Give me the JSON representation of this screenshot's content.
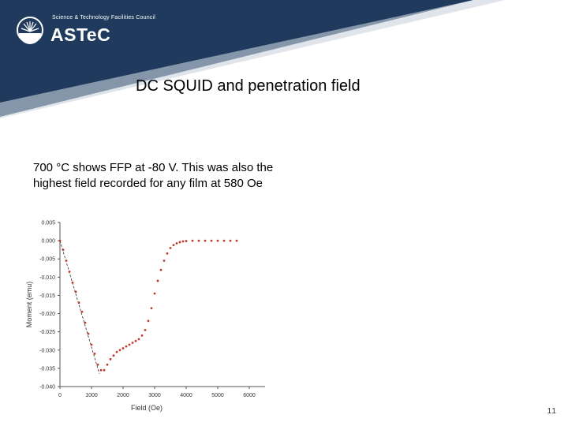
{
  "header": {
    "org_line": "Science & Technology Facilities Council",
    "logo_text": "ASTeC",
    "logo_icon": "stfc-sunburst-logo",
    "band_color": "#1f3a5c"
  },
  "slide": {
    "title": "DC SQUID and penetration field",
    "body": "700 °C shows FFP at -80 V. This was also the highest field recorded for any film at 580 Oe",
    "page_number": "11"
  },
  "chart_data": {
    "type": "scatter",
    "xlabel": "Field (Oe)",
    "ylabel": "Moment (emu)",
    "xlim": [
      0,
      6500
    ],
    "ylim": [
      -0.04,
      0.005
    ],
    "xticks": [
      0,
      1000,
      2000,
      3000,
      4000,
      5000,
      6000
    ],
    "xtick_labels": [
      "0",
      "1000",
      "2000",
      "3000",
      "4000",
      "5000",
      "6000"
    ],
    "yticks": [
      0.005,
      0.0,
      -0.005,
      -0.01,
      -0.015,
      -0.02,
      -0.025,
      -0.03,
      -0.035,
      -0.04
    ],
    "ytick_labels": [
      "0.005",
      "0.000",
      "-0.005",
      "-0.010",
      "-0.015",
      "-0.020",
      "-0.025",
      "-0.030",
      "-0.035",
      "-0.040"
    ],
    "series": [
      {
        "color": "#c0392b",
        "marker": "point",
        "x": [
          0,
          100,
          200,
          300,
          400,
          500,
          600,
          700,
          800,
          900,
          1000,
          1100,
          1200,
          1300,
          1400,
          1500,
          1600,
          1700,
          1800,
          1900,
          2000,
          2100,
          2200,
          2300,
          2400,
          2500,
          2600,
          2700,
          2800,
          2900,
          3000,
          3100,
          3200,
          3300,
          3400,
          3500,
          3600,
          3700,
          3800,
          3900,
          4000,
          4200,
          4400,
          4600,
          4800,
          5000,
          5200,
          5400,
          5600
        ],
        "y": [
          0.0,
          -0.0025,
          -0.0055,
          -0.0085,
          -0.0115,
          -0.014,
          -0.017,
          -0.0195,
          -0.0225,
          -0.0255,
          -0.0285,
          -0.031,
          -0.034,
          -0.0355,
          -0.0355,
          -0.034,
          -0.0325,
          -0.0315,
          -0.0305,
          -0.03,
          -0.0295,
          -0.029,
          -0.0285,
          -0.028,
          -0.0275,
          -0.027,
          -0.026,
          -0.0245,
          -0.022,
          -0.0185,
          -0.0145,
          -0.011,
          -0.008,
          -0.0055,
          -0.0035,
          -0.002,
          -0.0012,
          -0.0007,
          -0.0004,
          -0.0002,
          -0.0001,
          0.0,
          0.0,
          0.0,
          0.0,
          0.0,
          0.0,
          0.0,
          0.0
        ]
      },
      {
        "color": "#333333",
        "marker": "dashed-line",
        "x": [
          0,
          1250
        ],
        "y": [
          0.0,
          -0.0365
        ]
      }
    ]
  }
}
